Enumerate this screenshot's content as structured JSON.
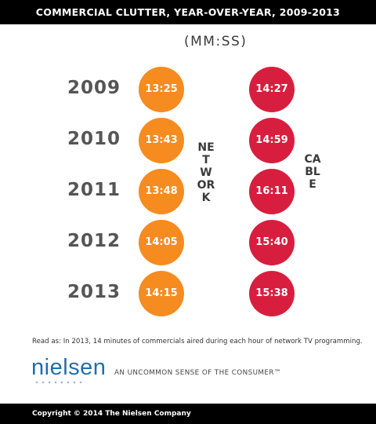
{
  "header": {
    "title": "COMMERCIAL CLUTTER, YEAR-OVER-YEAR, 2009-2013"
  },
  "chart_data": {
    "type": "table",
    "title": "COMMERCIAL CLUTTER, YEAR-OVER-YEAR, 2009-2013",
    "units": "(MM:SS)",
    "categories": [
      "2009",
      "2010",
      "2011",
      "2012",
      "2013"
    ],
    "series": [
      {
        "name": "NETWORK",
        "color": "#f68b1f",
        "values": [
          "13:25",
          "13:43",
          "13:48",
          "14:05",
          "14:15"
        ]
      },
      {
        "name": "CABLE",
        "color": "#d81e3f",
        "values": [
          "14:27",
          "14:59",
          "16:11",
          "15:40",
          "15:38"
        ]
      }
    ]
  },
  "footer": {
    "note": "Read as: In 2013, 14 minutes of commercials aired during each hour of network TV programming.",
    "logo": "nielsen",
    "tagline": "AN UNCOMMON SENSE OF THE CONSUMER™",
    "copyright": "Copyright © 2014 The Nielsen Company"
  },
  "colors": {
    "bars": "#000000",
    "logo": "#1f6fae"
  }
}
